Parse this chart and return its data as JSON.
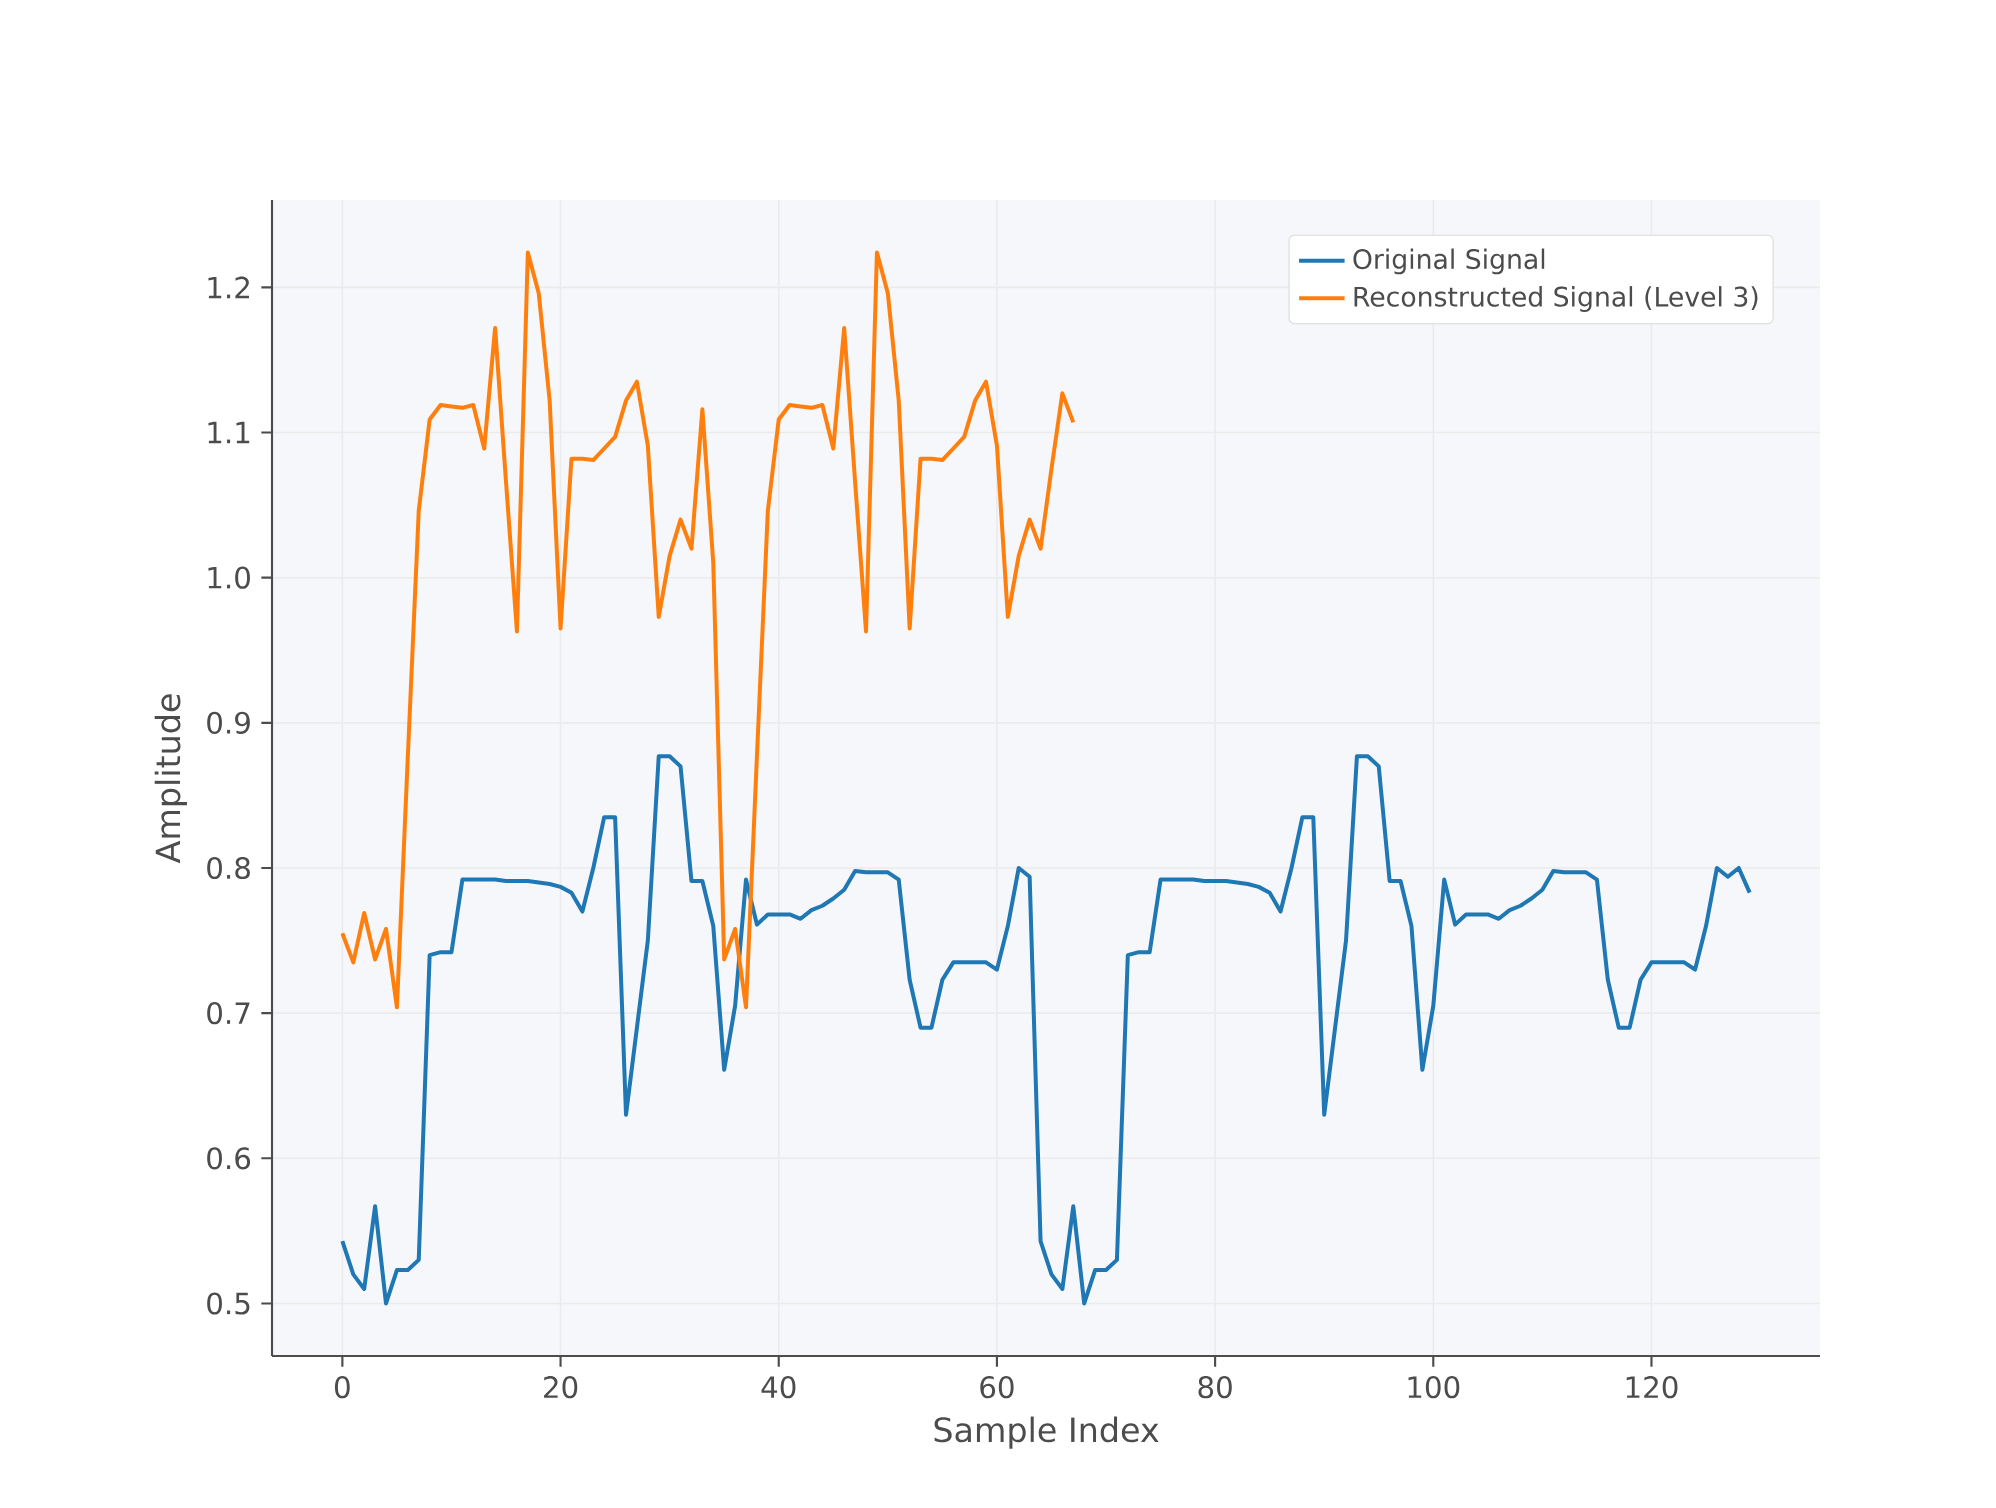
{
  "chart_data": {
    "type": "line",
    "xlabel": "Sample Index",
    "ylabel": "Amplitude",
    "xlim": [
      -6.45,
      135.45
    ],
    "ylim": [
      0.4638,
      1.2602
    ],
    "xticks": [
      0,
      20,
      40,
      60,
      80,
      100,
      120
    ],
    "yticks": [
      {
        "value": 0.5,
        "label": "0.5"
      },
      {
        "value": 0.6,
        "label": "0.6"
      },
      {
        "value": 0.7,
        "label": "0.7"
      },
      {
        "value": 0.8,
        "label": "0.8"
      },
      {
        "value": 0.9,
        "label": "0.9"
      },
      {
        "value": 1.0,
        "label": "1.0"
      },
      {
        "value": 1.1,
        "label": "1.1"
      },
      {
        "value": 1.2,
        "label": "1.2"
      }
    ],
    "grid": true,
    "legend": "top right",
    "series": [
      {
        "name": "Original Signal",
        "color": "#1f77b4",
        "x": [
          0,
          1,
          2,
          3,
          4,
          5,
          6,
          7,
          8,
          9,
          10,
          11,
          12,
          13,
          14,
          15,
          16,
          17,
          18,
          19,
          20,
          21,
          22,
          23,
          24,
          25,
          26,
          27,
          28,
          29,
          30,
          31,
          32,
          33,
          34,
          35,
          36,
          37,
          38,
          39,
          40,
          41,
          42,
          43,
          44,
          45,
          46,
          47,
          48,
          49,
          50,
          51,
          52,
          53,
          54,
          55,
          56,
          57,
          58,
          59,
          60,
          61,
          62,
          63,
          64,
          65,
          66,
          67,
          68,
          69,
          70,
          71,
          72,
          73,
          74,
          75,
          76,
          77,
          78,
          79,
          80,
          81,
          82,
          83,
          84,
          85,
          86,
          87,
          88,
          89,
          90,
          91,
          92,
          93,
          94,
          95,
          96,
          97,
          98,
          99,
          100,
          101,
          102,
          103,
          104,
          105,
          106,
          107,
          108,
          109,
          110,
          111,
          112,
          113,
          114,
          115,
          116,
          117,
          118,
          119,
          120,
          121,
          122,
          123,
          124,
          125,
          126,
          127,
          128,
          129
        ],
        "values": [
          0.543,
          0.52,
          0.51,
          0.567,
          0.5,
          0.523,
          0.523,
          0.53,
          0.74,
          0.742,
          0.742,
          0.792,
          0.792,
          0.792,
          0.792,
          0.791,
          0.791,
          0.791,
          0.79,
          0.789,
          0.787,
          0.783,
          0.77,
          0.8,
          0.835,
          0.835,
          0.63,
          0.69,
          0.75,
          0.877,
          0.877,
          0.87,
          0.791,
          0.791,
          0.76,
          0.661,
          0.705,
          0.792,
          0.761,
          0.768,
          0.768,
          0.768,
          0.765,
          0.771,
          0.774,
          0.779,
          0.785,
          0.798,
          0.797,
          0.797,
          0.797,
          0.792,
          0.723,
          0.69,
          0.69,
          0.723,
          0.735,
          0.735,
          0.735,
          0.735,
          0.73,
          0.76,
          0.8,
          0.794,
          0.543,
          0.52,
          0.51,
          0.567,
          0.5,
          0.523,
          0.523,
          0.53,
          0.74,
          0.742,
          0.742,
          0.792,
          0.792,
          0.792,
          0.792,
          0.791,
          0.791,
          0.791,
          0.79,
          0.789,
          0.787,
          0.783,
          0.77,
          0.8,
          0.835,
          0.835,
          0.63,
          0.69,
          0.75,
          0.877,
          0.877,
          0.87,
          0.791,
          0.791,
          0.76,
          0.661,
          0.705,
          0.792,
          0.761,
          0.768,
          0.768,
          0.768,
          0.765,
          0.771,
          0.774,
          0.779,
          0.785,
          0.798,
          0.797,
          0.797,
          0.797,
          0.792,
          0.723,
          0.69,
          0.69,
          0.723,
          0.735,
          0.735,
          0.735,
          0.735,
          0.73,
          0.76,
          0.8,
          0.794,
          0.8,
          0.783
        ]
      },
      {
        "name": "Reconstructed Signal (Level 3)",
        "color": "#ff7f0e",
        "x": [
          0,
          1,
          2,
          3,
          4,
          5,
          6,
          7,
          8,
          9,
          10,
          11,
          12,
          13,
          14,
          15,
          16,
          17,
          18,
          19,
          20,
          21,
          22,
          23,
          24,
          25,
          26,
          27,
          28,
          29,
          30,
          31,
          32,
          33,
          34,
          35,
          36,
          37,
          38,
          39,
          40,
          41,
          42,
          43,
          44,
          45,
          46,
          47,
          48,
          49,
          50,
          51,
          52,
          53,
          54,
          55,
          56,
          57,
          58,
          59,
          60,
          61,
          62,
          63,
          64,
          65,
          66,
          67
        ],
        "values": [
          0.755,
          0.735,
          0.769,
          0.737,
          0.758,
          0.704,
          0.877,
          1.046,
          1.109,
          1.119,
          1.118,
          1.117,
          1.119,
          1.089,
          1.172,
          1.066,
          0.963,
          1.224,
          1.196,
          1.122,
          0.965,
          1.082,
          1.082,
          1.081,
          1.089,
          1.097,
          1.122,
          1.135,
          1.091,
          0.973,
          1.015,
          1.04,
          1.02,
          1.116,
          1.01,
          0.737,
          0.758,
          0.704,
          0.877,
          1.046,
          1.109,
          1.119,
          1.118,
          1.117,
          1.119,
          1.089,
          1.172,
          1.066,
          0.963,
          1.224,
          1.196,
          1.122,
          0.965,
          1.082,
          1.082,
          1.081,
          1.089,
          1.097,
          1.122,
          1.135,
          1.091,
          0.973,
          1.015,
          1.04,
          1.02,
          1.075,
          1.127,
          1.107
        ]
      }
    ]
  }
}
